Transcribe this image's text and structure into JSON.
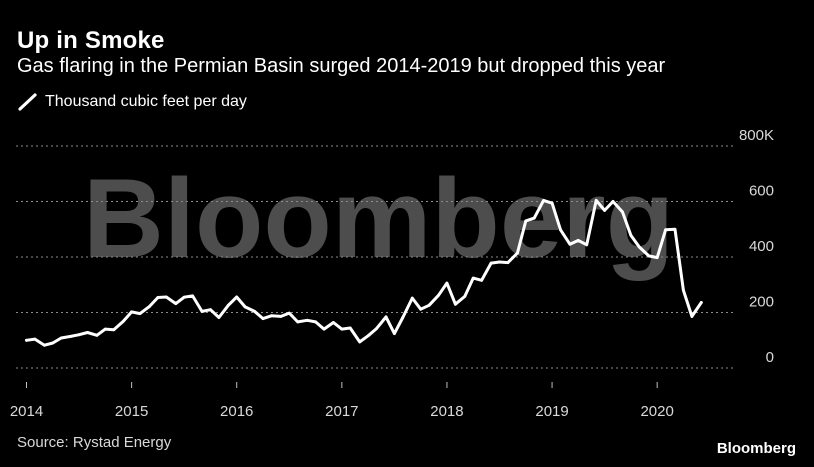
{
  "header": {
    "title": "Up in Smoke",
    "subtitle": "Gas flaring in the Permian Basin surged 2014-2019 but dropped this year"
  },
  "legend": {
    "label": "Thousand cubic feet per day"
  },
  "footer": {
    "source": "Source: Rystad Energy",
    "brand": "Bloomberg"
  },
  "watermark": {
    "text": "Bloomberg"
  },
  "colors": {
    "background": "#000000",
    "line": "#ffffff",
    "grid": "#8c8c8c",
    "axis_text": "#d9d9d9",
    "watermark": "#4d4d4d"
  },
  "chart_data": {
    "type": "line",
    "title": "Up in Smoke",
    "subtitle": "Gas flaring in the Permian Basin surged 2014-2019 but dropped this year",
    "ylabel": "Thousand cubic feet per day",
    "xlim": [
      2013.9,
      2020.75
    ],
    "ylim": [
      0,
      800
    ],
    "y_ticks": [
      0,
      200,
      400,
      600,
      800
    ],
    "y_tick_labels": [
      "0",
      "200",
      "400",
      "600",
      "800K"
    ],
    "x_ticks": [
      2014,
      2015,
      2016,
      2017,
      2018,
      2019,
      2020
    ],
    "x_tick_labels": [
      "2014",
      "2015",
      "2016",
      "2017",
      "2018",
      "2019",
      "2020"
    ],
    "grid": true,
    "legend_position": "top-left",
    "series": [
      {
        "name": "Thousand cubic feet per day",
        "x": [
          2014.0,
          2014.08,
          2014.17,
          2014.25,
          2014.33,
          2014.42,
          2014.5,
          2014.58,
          2014.67,
          2014.75,
          2014.83,
          2014.92,
          2015.0,
          2015.08,
          2015.17,
          2015.25,
          2015.33,
          2015.42,
          2015.5,
          2015.58,
          2015.67,
          2015.75,
          2015.83,
          2015.92,
          2016.0,
          2016.08,
          2016.17,
          2016.25,
          2016.33,
          2016.42,
          2016.5,
          2016.58,
          2016.67,
          2016.75,
          2016.83,
          2016.92,
          2017.0,
          2017.08,
          2017.17,
          2017.25,
          2017.33,
          2017.42,
          2017.5,
          2017.58,
          2017.67,
          2017.75,
          2017.83,
          2017.92,
          2018.0,
          2018.08,
          2018.17,
          2018.25,
          2018.33,
          2018.42,
          2018.5,
          2018.58,
          2018.67,
          2018.75,
          2018.83,
          2018.92,
          2019.0,
          2019.08,
          2019.17,
          2019.25,
          2019.33,
          2019.42,
          2019.5,
          2019.58,
          2019.67,
          2019.75,
          2019.83,
          2019.92,
          2020.0,
          2020.08,
          2020.17,
          2020.25,
          2020.33,
          2020.42
        ],
        "values": [
          100,
          104,
          82,
          90,
          108,
          114,
          120,
          128,
          118,
          140,
          138,
          168,
          202,
          196,
          222,
          254,
          256,
          232,
          255,
          260,
          204,
          210,
          182,
          226,
          256,
          220,
          204,
          178,
          188,
          186,
          198,
          166,
          172,
          166,
          140,
          164,
          140,
          144,
          94,
          116,
          142,
          184,
          124,
          182,
          252,
          212,
          226,
          262,
          306,
          230,
          258,
          324,
          316,
          378,
          382,
          380,
          414,
          530,
          540,
          604,
          594,
          498,
          446,
          460,
          444,
          604,
          568,
          600,
          562,
          478,
          436,
          404,
          398,
          498,
          500,
          280,
          186,
          236
        ]
      }
    ]
  }
}
